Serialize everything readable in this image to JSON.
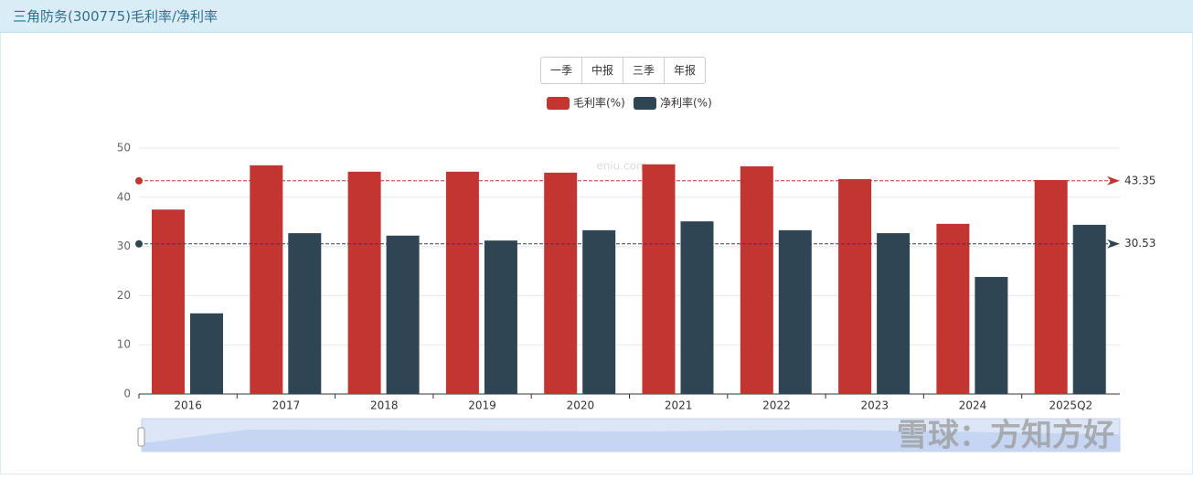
{
  "header": {
    "title": "三角防务(300775)毛利率/净利率"
  },
  "buttons": [
    "一季",
    "中报",
    "三季",
    "年报"
  ],
  "watermarks": [
    "eniu.com",
    "雪球：方知方好"
  ],
  "chart_data": {
    "type": "bar",
    "categories": [
      "2016",
      "2017",
      "2018",
      "2019",
      "2020",
      "2021",
      "2022",
      "2023",
      "2024",
      "2025Q2"
    ],
    "series": [
      {
        "name": "毛利率(%)",
        "color": "#c23531",
        "values": [
          37.5,
          46.5,
          45.2,
          45.2,
          45.0,
          46.7,
          46.3,
          43.7,
          34.6,
          43.5
        ]
      },
      {
        "name": "净利率(%)",
        "color": "#2f4554",
        "values": [
          16.4,
          32.7,
          32.2,
          31.2,
          33.3,
          35.1,
          33.3,
          32.7,
          23.8,
          34.4
        ]
      }
    ],
    "mark_lines": [
      43.35,
      30.53
    ],
    "ylim": [
      0,
      50
    ],
    "yticks": [
      0,
      10,
      20,
      30,
      40,
      50
    ],
    "grid": true,
    "legend": "top"
  }
}
